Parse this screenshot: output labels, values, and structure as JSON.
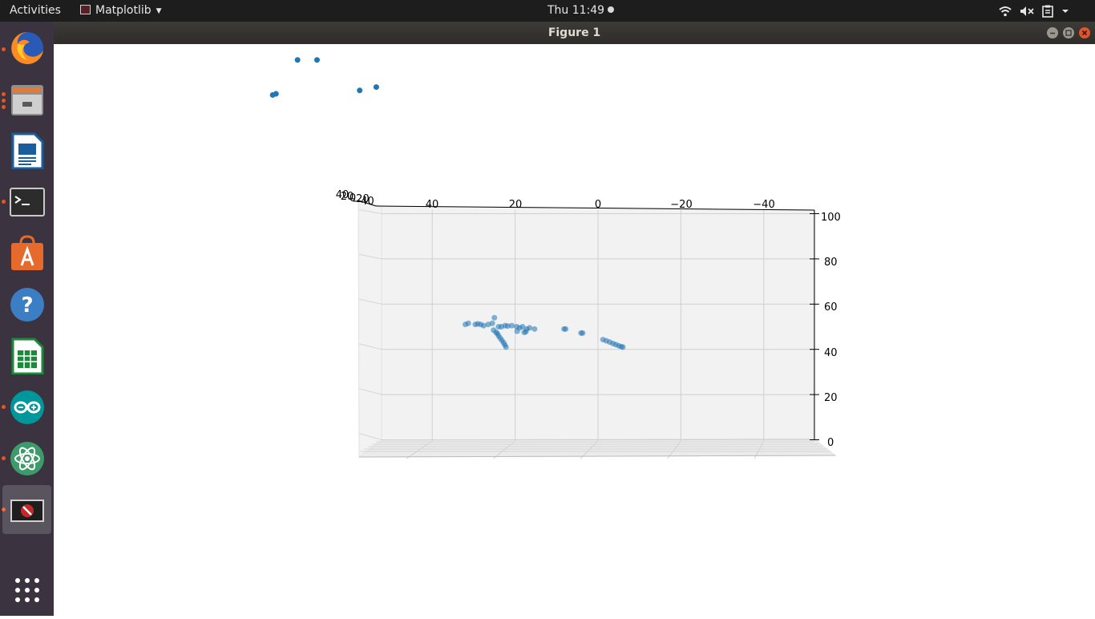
{
  "topbar": {
    "activities": "Activities",
    "app_name": "Matplotlib",
    "clock": "Thu 11:49",
    "tray_icons": [
      "wifi-icon",
      "volume-muted-icon",
      "clipboard-icon",
      "system-menu-caret-icon"
    ]
  },
  "window": {
    "title": "Figure 1"
  },
  "dock": {
    "items": [
      "Firefox",
      "Files",
      "LibreOffice Writer",
      "Terminal",
      "Ubuntu Software",
      "Help",
      "LibreOffice Calc",
      "Arduino IDE",
      "Atom",
      "Matplotlib Figure",
      "Show Applications"
    ]
  },
  "colors": {
    "points": "#1f77b4",
    "dock_bg": "#3b3440",
    "topbar_bg": "#1d1d1d",
    "running_dot": "#e95420"
  },
  "chart_data": {
    "type": "scatter",
    "projection": "3d",
    "title": "",
    "xlabel": "",
    "ylabel": "",
    "zlabel": "",
    "x_ticks": [
      "40",
      "20",
      "0",
      "−20",
      "−40"
    ],
    "y_ticks": [
      "40",
      "20",
      "0",
      "−20",
      "−40"
    ],
    "z_ticks": [
      "100",
      "80",
      "60",
      "40",
      "20",
      "0"
    ],
    "xlim": [
      50,
      -50
    ],
    "zlim": [
      0,
      100
    ],
    "grid": true,
    "series": [
      {
        "points": [
          {
            "x": 72.5,
            "z": 168
          },
          {
            "x": 67.8,
            "z": 168
          },
          {
            "x": 78.5,
            "z": 152.5
          },
          {
            "x": 77.7,
            "z": 153
          },
          {
            "x": 57.5,
            "z": 154.5
          },
          {
            "x": 53.5,
            "z": 156
          },
          {
            "x": 32,
            "z": 51
          },
          {
            "x": 31.3,
            "z": 51.5
          },
          {
            "x": 29.6,
            "z": 51
          },
          {
            "x": 29,
            "z": 51.3
          },
          {
            "x": 28.3,
            "z": 51
          },
          {
            "x": 27.6,
            "z": 50.5
          },
          {
            "x": 26.5,
            "z": 51
          },
          {
            "x": 25.5,
            "z": 51.5
          },
          {
            "x": 25,
            "z": 54
          },
          {
            "x": 25.2,
            "z": 48.5
          },
          {
            "x": 24.6,
            "z": 47.5
          },
          {
            "x": 24.3,
            "z": 47
          },
          {
            "x": 24,
            "z": 46
          },
          {
            "x": 23.6,
            "z": 45
          },
          {
            "x": 23.2,
            "z": 44
          },
          {
            "x": 22.8,
            "z": 43
          },
          {
            "x": 22.5,
            "z": 42
          },
          {
            "x": 22.2,
            "z": 41
          },
          {
            "x": 24,
            "z": 50
          },
          {
            "x": 23.3,
            "z": 50
          },
          {
            "x": 22.4,
            "z": 50.5
          },
          {
            "x": 21.8,
            "z": 50.3
          },
          {
            "x": 20.8,
            "z": 50.5
          },
          {
            "x": 19.6,
            "z": 50
          },
          {
            "x": 18.9,
            "z": 49.5
          },
          {
            "x": 18.2,
            "z": 50
          },
          {
            "x": 17.2,
            "z": 49
          },
          {
            "x": 16.5,
            "z": 49.5
          },
          {
            "x": 15.3,
            "z": 49
          },
          {
            "x": 19.5,
            "z": 48
          },
          {
            "x": 17.8,
            "z": 47.5
          },
          {
            "x": 17.4,
            "z": 47.8
          },
          {
            "x": 8.2,
            "z": 49
          },
          {
            "x": 7.8,
            "z": 49
          },
          {
            "x": 4.1,
            "z": 47.2
          },
          {
            "x": 3.7,
            "z": 47.2
          },
          {
            "x": -1.2,
            "z": 44.3
          },
          {
            "x": -2,
            "z": 43.8
          },
          {
            "x": -2.8,
            "z": 43.2
          },
          {
            "x": -3.6,
            "z": 42.6
          },
          {
            "x": -4.3,
            "z": 42.1
          },
          {
            "x": -5,
            "z": 41.6
          },
          {
            "x": -5.6,
            "z": 41.2
          },
          {
            "x": -6,
            "z": 41
          }
        ]
      }
    ]
  }
}
